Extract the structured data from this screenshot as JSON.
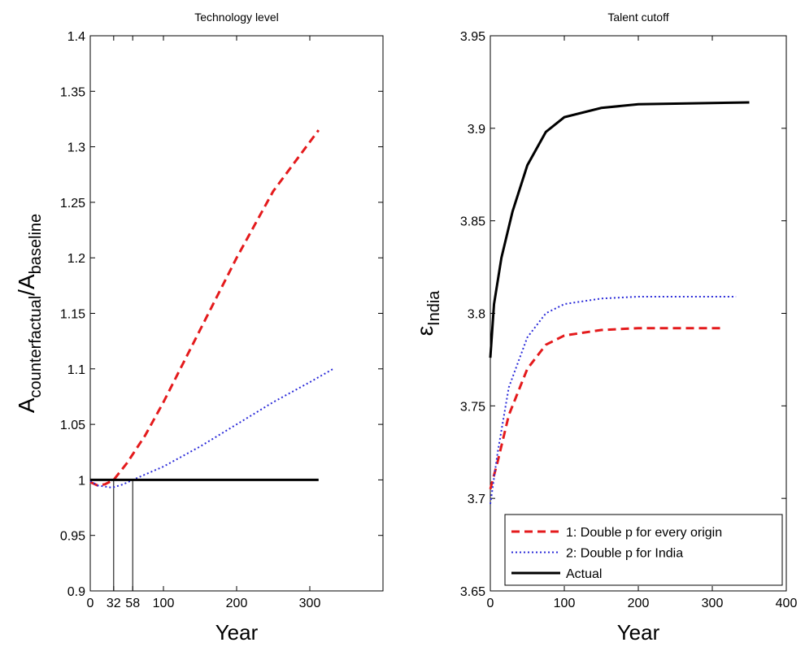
{
  "chart_data": [
    {
      "type": "line",
      "title": "Technology level",
      "xlabel": "Year",
      "ylabel": [
        "A",
        "counterfactual",
        "/A",
        "baseline"
      ],
      "xlim": [
        0,
        400
      ],
      "xticks": [
        0,
        32,
        58,
        100,
        200,
        300
      ],
      "ylim": [
        0.9,
        1.4
      ],
      "yticks": [
        0.9,
        0.95,
        1,
        1.05,
        1.1,
        1.15,
        1.2,
        1.25,
        1.3,
        1.35,
        1.4
      ],
      "vlines": [
        32,
        58
      ],
      "series": [
        {
          "color": "#e41a1c",
          "dash": "dashed",
          "x": [
            0,
            10,
            20,
            32,
            50,
            75,
            100,
            150,
            200,
            250,
            312
          ],
          "values": [
            0.998,
            0.995,
            0.996,
            1.0,
            1.015,
            1.04,
            1.07,
            1.135,
            1.2,
            1.26,
            1.315
          ]
        },
        {
          "color": "#2b2bd9",
          "dash": "dotted",
          "x": [
            0,
            10,
            30,
            45,
            58,
            100,
            150,
            200,
            250,
            300,
            332
          ],
          "values": [
            0.999,
            0.995,
            0.993,
            0.996,
            1.0,
            1.012,
            1.03,
            1.05,
            1.07,
            1.088,
            1.1
          ]
        },
        {
          "color": "#000000",
          "dash": "solid",
          "x": [
            0,
            312
          ],
          "values": [
            1,
            1
          ]
        }
      ]
    },
    {
      "type": "line",
      "title": "Talent cutoff",
      "xlabel": "Year",
      "ylabel": [
        "ε",
        "India"
      ],
      "xlim": [
        0,
        400
      ],
      "xticks": [
        0,
        100,
        200,
        300,
        400
      ],
      "ylim": [
        3.65,
        3.95
      ],
      "yticks": [
        3.65,
        3.7,
        3.75,
        3.8,
        3.85,
        3.9,
        3.95
      ],
      "legend": "lower right",
      "series": [
        {
          "name": "1: Double p for every origin",
          "color": "#e41a1c",
          "dash": "dashed",
          "x": [
            0,
            10,
            25,
            50,
            75,
            100,
            150,
            200,
            312
          ],
          "values": [
            3.705,
            3.72,
            3.745,
            3.77,
            3.783,
            3.788,
            3.791,
            3.792,
            3.792
          ]
        },
        {
          "name": "2: Double p for India",
          "color": "#2b2bd9",
          "dash": "dotted",
          "x": [
            0,
            10,
            25,
            50,
            75,
            100,
            150,
            200,
            332
          ],
          "values": [
            3.697,
            3.725,
            3.76,
            3.787,
            3.8,
            3.805,
            3.808,
            3.809,
            3.809
          ]
        },
        {
          "name": "Actual",
          "color": "#000000",
          "dash": "solid",
          "x": [
            0,
            5,
            15,
            30,
            50,
            75,
            100,
            150,
            200,
            350
          ],
          "values": [
            3.776,
            3.805,
            3.83,
            3.855,
            3.88,
            3.898,
            3.906,
            3.911,
            3.913,
            3.914
          ]
        }
      ]
    }
  ]
}
